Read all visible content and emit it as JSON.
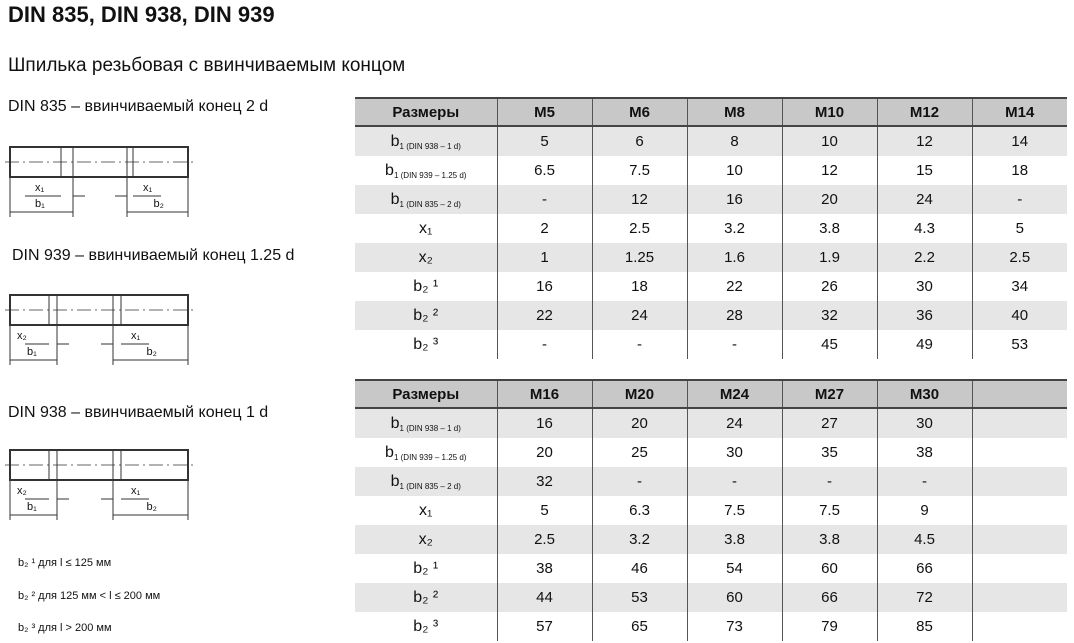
{
  "title": "DIN 835, DIN 938, DIN 939",
  "subtitle": "Шпилька резьбовая с ввинчиваемым концом",
  "captions": [
    "DIN 835 – ввинчиваемый конец 2 d",
    "DIN 939 – ввинчиваемый конец 1.25 d",
    "DIN 938 – ввинчиваемый конец 1 d"
  ],
  "drawing_labels": {
    "x1": "x₁",
    "x2": "x₂",
    "b1": "b₁",
    "b2": "b₂"
  },
  "notes": [
    "b₂ ¹ для l ≤ 125 мм",
    "b₂ ² для 125 мм < l ≤ 200 мм",
    "b₂ ³ для l > 200 мм"
  ],
  "row_labels": [
    {
      "main": "b",
      "sub": "1 (DIN 938 – 1 d)"
    },
    {
      "main": "b",
      "sub": "1 (DIN 939 – 1.25 d)"
    },
    {
      "main": "b",
      "sub": "1 (DIN 835 – 2 d)"
    },
    {
      "main": "x₁",
      "sub": ""
    },
    {
      "main": "x₂",
      "sub": ""
    },
    {
      "main": "b₂ ¹",
      "sub": ""
    },
    {
      "main": "b₂ ²",
      "sub": ""
    },
    {
      "main": "b₂ ³",
      "sub": ""
    }
  ],
  "table1": {
    "header": [
      "Размеры",
      "M5",
      "M6",
      "M8",
      "M10",
      "M12",
      "M14"
    ],
    "rows": [
      [
        "5",
        "6",
        "8",
        "10",
        "12",
        "14"
      ],
      [
        "6.5",
        "7.5",
        "10",
        "12",
        "15",
        "18"
      ],
      [
        "-",
        "12",
        "16",
        "20",
        "24",
        "-"
      ],
      [
        "2",
        "2.5",
        "3.2",
        "3.8",
        "4.3",
        "5"
      ],
      [
        "1",
        "1.25",
        "1.6",
        "1.9",
        "2.2",
        "2.5"
      ],
      [
        "16",
        "18",
        "22",
        "26",
        "30",
        "34"
      ],
      [
        "22",
        "24",
        "28",
        "32",
        "36",
        "40"
      ],
      [
        "-",
        "-",
        "-",
        "45",
        "49",
        "53"
      ]
    ]
  },
  "table2": {
    "header": [
      "Размеры",
      "M16",
      "M20",
      "M24",
      "M27",
      "M30",
      ""
    ],
    "rows": [
      [
        "16",
        "20",
        "24",
        "27",
        "30",
        ""
      ],
      [
        "20",
        "25",
        "30",
        "35",
        "38",
        ""
      ],
      [
        "32",
        "-",
        "-",
        "-",
        "-",
        ""
      ],
      [
        "5",
        "6.3",
        "7.5",
        "7.5",
        "9",
        ""
      ],
      [
        "2.5",
        "3.2",
        "3.8",
        "3.8",
        "4.5",
        ""
      ],
      [
        "38",
        "46",
        "54",
        "60",
        "66",
        ""
      ],
      [
        "44",
        "53",
        "60",
        "66",
        "72",
        ""
      ],
      [
        "57",
        "65",
        "73",
        "79",
        "85",
        ""
      ]
    ]
  }
}
